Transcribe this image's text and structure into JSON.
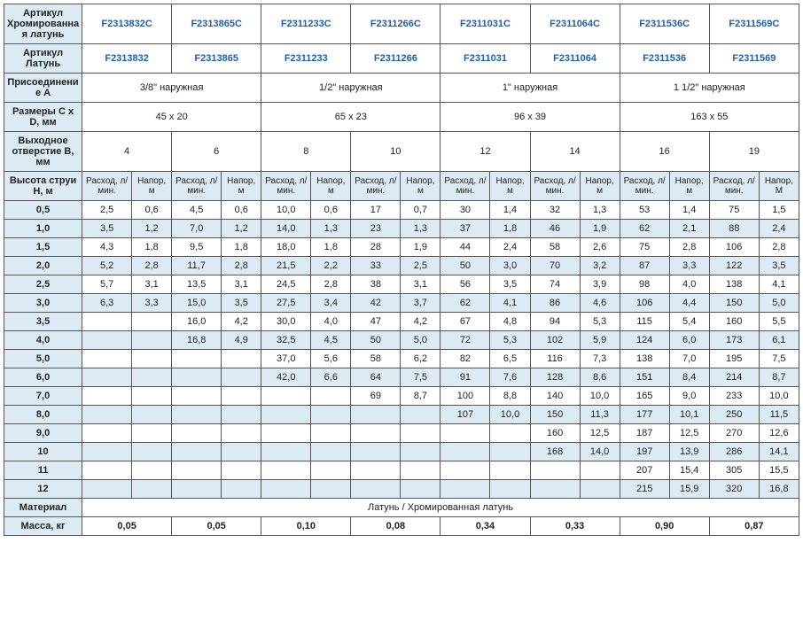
{
  "headers": {
    "art_chrome": "Артикул Хромированная латунь",
    "art_brass": "Артикул Латунь",
    "conn_a": "Присоединение А",
    "dims": "Размеры C x D, мм",
    "outlet": "Выходное отверстие В, мм",
    "jet_height": "Высота струи H, м",
    "flow": "Расход, л/мин.",
    "head": "Напор, м",
    "head_last": "Напор, М",
    "material": "Материал",
    "mass": "Масса, кг"
  },
  "art_chrome_vals": [
    "F2313832C",
    "F2313865C",
    "F2311233C",
    "F2311266C",
    "F2311031C",
    "F2311064C",
    "F2311536C",
    "F2311569C"
  ],
  "art_brass_vals": [
    "F2313832",
    "F2313865",
    "F2311233",
    "F2311266",
    "F2311031",
    "F2311064",
    "F2311536",
    "F2311569"
  ],
  "conn_a_vals": [
    "3/8\" наружная",
    "1/2\" наружная",
    "1\" наружная",
    "1 1/2\" наружная"
  ],
  "dims_vals": [
    "45 x 20",
    "65 x 23",
    "96 x 39",
    "163 x 55"
  ],
  "outlet_vals": [
    "4",
    "6",
    "8",
    "10",
    "12",
    "14",
    "16",
    "19"
  ],
  "material_val": "Латунь / Хромированная латунь",
  "mass_vals": [
    "0,05",
    "0,05",
    "0,10",
    "0,08",
    "0,34",
    "0,33",
    "0,90",
    "0,87"
  ],
  "rows": [
    {
      "h": "0,5",
      "shade": false,
      "vals": [
        "2,5",
        "0,6",
        "4,5",
        "0,6",
        "10,0",
        "0,6",
        "17",
        "0,7",
        "30",
        "1,4",
        "32",
        "1,3",
        "53",
        "1,4",
        "75",
        "1,5"
      ]
    },
    {
      "h": "1,0",
      "shade": true,
      "vals": [
        "3,5",
        "1,2",
        "7,0",
        "1,2",
        "14,0",
        "1,3",
        "23",
        "1,3",
        "37",
        "1,8",
        "46",
        "1,9",
        "62",
        "2,1",
        "88",
        "2,4"
      ]
    },
    {
      "h": "1,5",
      "shade": false,
      "vals": [
        "4,3",
        "1,8",
        "9,5",
        "1,8",
        "18,0",
        "1,8",
        "28",
        "1,9",
        "44",
        "2,4",
        "58",
        "2,6",
        "75",
        "2,8",
        "106",
        "2,8"
      ]
    },
    {
      "h": "2,0",
      "shade": true,
      "vals": [
        "5,2",
        "2,8",
        "11,7",
        "2,8",
        "21,5",
        "2,2",
        "33",
        "2,5",
        "50",
        "3,0",
        "70",
        "3,2",
        "87",
        "3,3",
        "122",
        "3,5"
      ]
    },
    {
      "h": "2,5",
      "shade": false,
      "vals": [
        "5,7",
        "3,1",
        "13,5",
        "3,1",
        "24,5",
        "2,8",
        "38",
        "3,1",
        "56",
        "3,5",
        "74",
        "3,9",
        "98",
        "4,0",
        "138",
        "4,1"
      ]
    },
    {
      "h": "3,0",
      "shade": true,
      "vals": [
        "6,3",
        "3,3",
        "15,0",
        "3,5",
        "27,5",
        "3,4",
        "42",
        "3,7",
        "62",
        "4,1",
        "86",
        "4,6",
        "106",
        "4,4",
        "150",
        "5,0"
      ]
    },
    {
      "h": "3,5",
      "shade": false,
      "vals": [
        "",
        "",
        "16,0",
        "4,2",
        "30,0",
        "4,0",
        "47",
        "4,2",
        "67",
        "4,8",
        "94",
        "5,3",
        "115",
        "5,4",
        "160",
        "5,5"
      ]
    },
    {
      "h": "4,0",
      "shade": true,
      "vals": [
        "",
        "",
        "16,8",
        "4,9",
        "32,5",
        "4,5",
        "50",
        "5,0",
        "72",
        "5,3",
        "102",
        "5,9",
        "124",
        "6,0",
        "173",
        "6,1"
      ]
    },
    {
      "h": "5,0",
      "shade": false,
      "vals": [
        "",
        "",
        "",
        "",
        "37,0",
        "5,6",
        "58",
        "6,2",
        "82",
        "6,5",
        "116",
        "7,3",
        "138",
        "7,0",
        "195",
        "7,5"
      ]
    },
    {
      "h": "6,0",
      "shade": true,
      "vals": [
        "",
        "",
        "",
        "",
        "42,0",
        "6,6",
        "64",
        "7,5",
        "91",
        "7,6",
        "128",
        "8,6",
        "151",
        "8,4",
        "214",
        "8,7"
      ]
    },
    {
      "h": "7,0",
      "shade": false,
      "vals": [
        "",
        "",
        "",
        "",
        "",
        "",
        "69",
        "8,7",
        "100",
        "8,8",
        "140",
        "10,0",
        "165",
        "9,0",
        "233",
        "10,0"
      ]
    },
    {
      "h": "8,0",
      "shade": true,
      "vals": [
        "",
        "",
        "",
        "",
        "",
        "",
        "",
        "",
        "107",
        "10,0",
        "150",
        "11,3",
        "177",
        "10,1",
        "250",
        "11,5"
      ]
    },
    {
      "h": "9,0",
      "shade": false,
      "vals": [
        "",
        "",
        "",
        "",
        "",
        "",
        "",
        "",
        "",
        "",
        "160",
        "12,5",
        "187",
        "12,5",
        "270",
        "12,6"
      ]
    },
    {
      "h": "10",
      "shade": true,
      "vals": [
        "",
        "",
        "",
        "",
        "",
        "",
        "",
        "",
        "",
        "",
        "168",
        "14,0",
        "197",
        "13,9",
        "286",
        "14,1"
      ]
    },
    {
      "h": "11",
      "shade": false,
      "vals": [
        "",
        "",
        "",
        "",
        "",
        "",
        "",
        "",
        "",
        "",
        "",
        "",
        "207",
        "15,4",
        "305",
        "15,5"
      ]
    },
    {
      "h": "12",
      "shade": true,
      "vals": [
        "",
        "",
        "",
        "",
        "",
        "",
        "",
        "",
        "",
        "",
        "",
        "",
        "215",
        "15,9",
        "320",
        "16,8"
      ]
    }
  ]
}
